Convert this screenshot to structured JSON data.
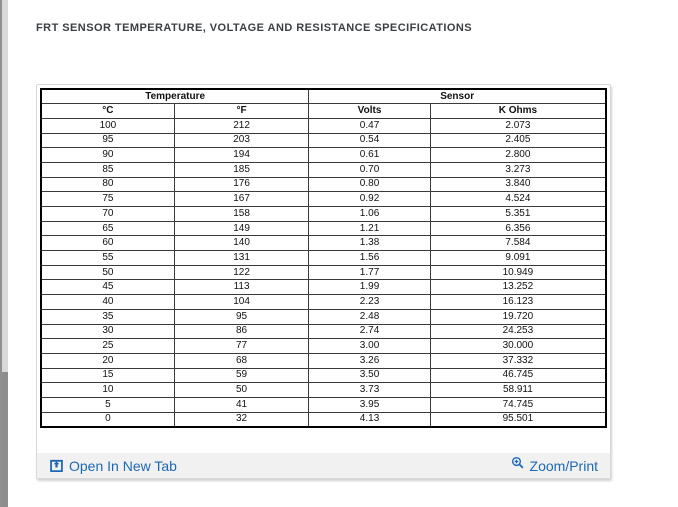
{
  "page": {
    "title": "FRT SENSOR TEMPERATURE, VOLTAGE AND RESISTANCE SPECIFICATIONS"
  },
  "table": {
    "group_headers": [
      {
        "label": "Temperature",
        "colspan": 2
      },
      {
        "label": "Sensor",
        "colspan": 2
      }
    ],
    "columns": [
      "°C",
      "°F",
      "Volts",
      "K Ohms"
    ],
    "rows": [
      [
        "100",
        "212",
        "0.47",
        "2.073"
      ],
      [
        "95",
        "203",
        "0.54",
        "2.405"
      ],
      [
        "90",
        "194",
        "0.61",
        "2.800"
      ],
      [
        "85",
        "185",
        "0.70",
        "3.273"
      ],
      [
        "80",
        "176",
        "0.80",
        "3.840"
      ],
      [
        "75",
        "167",
        "0.92",
        "4.524"
      ],
      [
        "70",
        "158",
        "1.06",
        "5.351"
      ],
      [
        "65",
        "149",
        "1.21",
        "6.356"
      ],
      [
        "60",
        "140",
        "1.38",
        "7.584"
      ],
      [
        "55",
        "131",
        "1.56",
        "9.091"
      ],
      [
        "50",
        "122",
        "1.77",
        "10.949"
      ],
      [
        "45",
        "113",
        "1.99",
        "13.252"
      ],
      [
        "40",
        "104",
        "2.23",
        "16.123"
      ],
      [
        "35",
        "95",
        "2.48",
        "19.720"
      ],
      [
        "30",
        "86",
        "2.74",
        "24.253"
      ],
      [
        "25",
        "77",
        "3.00",
        "30.000"
      ],
      [
        "20",
        "68",
        "3.26",
        "37.332"
      ],
      [
        "15",
        "59",
        "3.50",
        "46.745"
      ],
      [
        "10",
        "50",
        "3.73",
        "58.911"
      ],
      [
        "5",
        "41",
        "3.95",
        "74.745"
      ],
      [
        "0",
        "32",
        "4.13",
        "95.501"
      ]
    ]
  },
  "footer": {
    "open_in_new_tab_label": "Open In New Tab",
    "zoom_print_label": "Zoom/Print"
  },
  "icons": {
    "open_in_new_tab": "open-in-new-tab-icon",
    "zoom": "zoom-magnifier-plus-icon"
  },
  "colors": {
    "link_blue": "#1d68b5",
    "footer_bg": "#f1f1f1",
    "title_color": "#3c4043",
    "scrollbar_thumb": "#8d8d8d"
  }
}
